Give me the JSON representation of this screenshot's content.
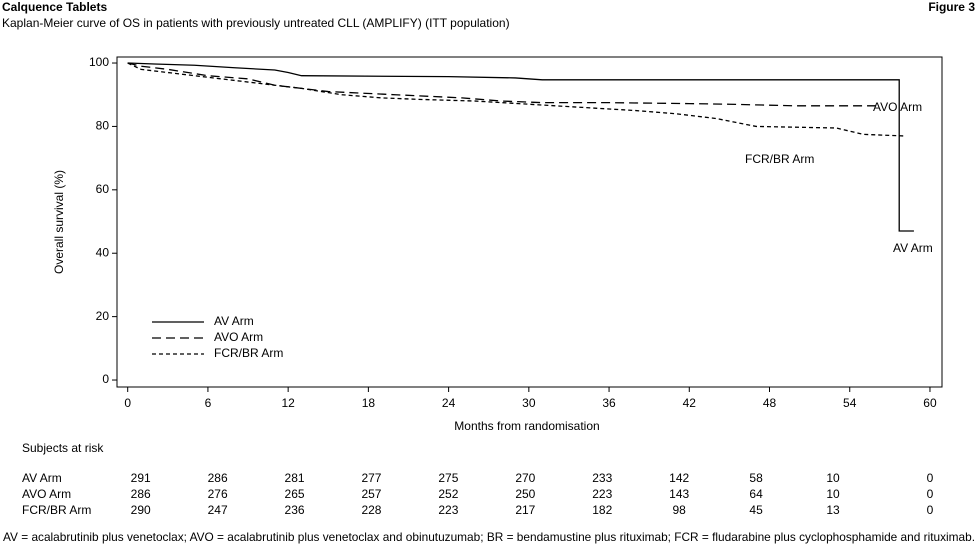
{
  "header": {
    "title": "Calquence Tablets",
    "figure": "Figure 3"
  },
  "chart_data": {
    "type": "line",
    "title": "Kaplan-Meier curve of OS in patients with previously untreated CLL (AMPLIFY) (ITT population)",
    "x_label": "Months from randomisation",
    "y_label": "Overall survival (%)",
    "xlim": [
      -0.8,
      60.9
    ],
    "ylim": [
      -2.2,
      101.9
    ],
    "xticks": [
      0,
      6,
      12,
      18,
      24,
      30,
      36,
      42,
      48,
      54,
      60
    ],
    "yticks": [
      0,
      20,
      40,
      60,
      80,
      100
    ],
    "legend": "lower-left",
    "series": [
      {
        "name": "AV Arm",
        "color": "#000000",
        "style": "solid",
        "x": [
          0,
          2,
          5,
          8,
          11,
          12,
          13,
          24,
          29,
          31,
          57.7,
          57.7,
          58.8
        ],
        "values": [
          100,
          99.7,
          99.3,
          98.5,
          97.8,
          97,
          96,
          95.7,
          95.3,
          94.7,
          94.7,
          47,
          47
        ]
      },
      {
        "name": "AVO Arm",
        "color": "#000000",
        "style": "long-dash",
        "x": [
          0,
          1,
          3,
          6,
          9,
          11,
          13,
          15,
          20,
          25,
          28,
          31,
          36,
          42,
          45,
          50,
          56
        ],
        "values": [
          100,
          99,
          98,
          96,
          95,
          93,
          92,
          91,
          90,
          89,
          88,
          87.5,
          87.5,
          87.2,
          87,
          86.5,
          86.5
        ]
      },
      {
        "name": "FCR/BR Arm",
        "color": "#000000",
        "style": "short-dash",
        "x": [
          0,
          1,
          3,
          5,
          7,
          9,
          11,
          13,
          16,
          19,
          22,
          26,
          30,
          34,
          38,
          41,
          44,
          47,
          53,
          55,
          58
        ],
        "values": [
          100,
          98,
          97,
          96,
          95,
          94,
          93,
          92,
          90,
          89,
          88.5,
          88,
          87,
          86,
          85,
          84,
          82.5,
          80,
          79.5,
          77.5,
          77
        ]
      }
    ],
    "annotations": [
      "AVO Arm",
      "FCR/BR Arm",
      "AV Arm"
    ],
    "risk_table": {
      "title": "Subjects at risk",
      "rows": [
        {
          "name": "AV Arm",
          "values": [
            291,
            286,
            281,
            277,
            275,
            270,
            233,
            142,
            58,
            10,
            0
          ]
        },
        {
          "name": "AVO Arm",
          "values": [
            286,
            276,
            265,
            257,
            252,
            250,
            223,
            143,
            64,
            10,
            0
          ]
        },
        {
          "name": "FCR/BR Arm",
          "values": [
            290,
            247,
            236,
            228,
            223,
            217,
            182,
            98,
            45,
            13,
            0
          ]
        }
      ]
    }
  },
  "footnote": "AV = acalabrutinib plus venetoclax; AVO = acalabrutinib plus venetoclax and obinutuzumab; BR = bendamustine plus rituximab; FCR = fludarabine plus cyclophosphamide and rituximab."
}
